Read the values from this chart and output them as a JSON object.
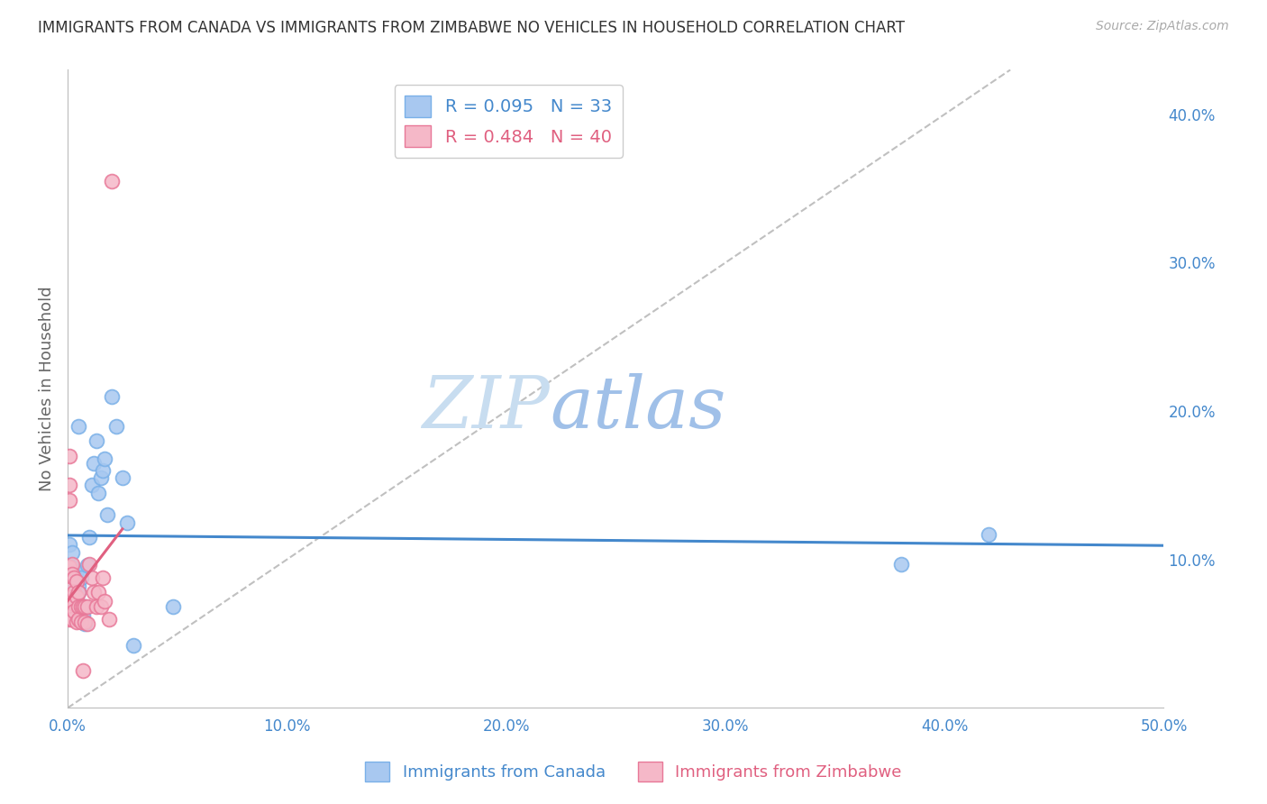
{
  "title": "IMMIGRANTS FROM CANADA VS IMMIGRANTS FROM ZIMBABWE NO VEHICLES IN HOUSEHOLD CORRELATION CHART",
  "source": "Source: ZipAtlas.com",
  "ylabel_left": "No Vehicles in Household",
  "xlim": [
    0.0,
    0.5
  ],
  "ylim": [
    0.0,
    0.43
  ],
  "canada_color": "#a8c8f0",
  "canada_edge": "#7ab0e8",
  "zimbabwe_color": "#f5b8c8",
  "zimbabwe_edge": "#e87898",
  "canada_R": 0.095,
  "canada_N": 33,
  "zimbabwe_R": 0.484,
  "zimbabwe_N": 40,
  "legend_label_canada": "Immigrants from Canada",
  "legend_label_zimbabwe": "Immigrants from Zimbabwe",
  "trendline_canada_color": "#4488cc",
  "trendline_zimbabwe_color": "#e06080",
  "diag_color": "#c0c0c0",
  "watermark_zip": "ZIP",
  "watermark_atlas": "atlas",
  "watermark_color_zip": "#c8ddf0",
  "watermark_color_atlas": "#a0c0e8",
  "canada_x": [
    0.001,
    0.001,
    0.002,
    0.002,
    0.003,
    0.003,
    0.004,
    0.004,
    0.005,
    0.005,
    0.005,
    0.006,
    0.007,
    0.008,
    0.008,
    0.009,
    0.01,
    0.011,
    0.012,
    0.013,
    0.014,
    0.015,
    0.016,
    0.017,
    0.018,
    0.02,
    0.022,
    0.025,
    0.027,
    0.03,
    0.048,
    0.38,
    0.42
  ],
  "canada_y": [
    0.095,
    0.11,
    0.095,
    0.105,
    0.09,
    0.08,
    0.092,
    0.062,
    0.082,
    0.078,
    0.19,
    0.088,
    0.062,
    0.068,
    0.057,
    0.096,
    0.115,
    0.15,
    0.165,
    0.18,
    0.145,
    0.155,
    0.16,
    0.168,
    0.13,
    0.21,
    0.19,
    0.155,
    0.125,
    0.042,
    0.068,
    0.097,
    0.117
  ],
  "zimbabwe_x": [
    0.001,
    0.001,
    0.001,
    0.001,
    0.001,
    0.001,
    0.001,
    0.002,
    0.002,
    0.002,
    0.002,
    0.002,
    0.003,
    0.003,
    0.003,
    0.003,
    0.004,
    0.004,
    0.004,
    0.005,
    0.005,
    0.005,
    0.006,
    0.006,
    0.007,
    0.007,
    0.008,
    0.008,
    0.009,
    0.009,
    0.01,
    0.011,
    0.012,
    0.013,
    0.014,
    0.015,
    0.016,
    0.017,
    0.019,
    0.02
  ],
  "zimbabwe_y": [
    0.17,
    0.15,
    0.14,
    0.095,
    0.08,
    0.068,
    0.06,
    0.097,
    0.09,
    0.075,
    0.068,
    0.06,
    0.088,
    0.078,
    0.07,
    0.065,
    0.085,
    0.075,
    0.058,
    0.078,
    0.068,
    0.06,
    0.068,
    0.058,
    0.068,
    0.025,
    0.068,
    0.058,
    0.068,
    0.057,
    0.097,
    0.088,
    0.078,
    0.068,
    0.078,
    0.068,
    0.088,
    0.072,
    0.06,
    0.355
  ],
  "background_color": "#ffffff",
  "grid_color": "#dddddd",
  "title_color": "#333333",
  "axis_label_color": "#666666",
  "right_tick_color": "#4488cc",
  "bottom_tick_color": "#4488cc",
  "x_ticks": [
    0.0,
    0.1,
    0.2,
    0.3,
    0.4,
    0.5
  ],
  "x_tick_labels": [
    "0.0%",
    "10.0%",
    "20.0%",
    "30.0%",
    "40.0%",
    "50.0%"
  ],
  "y_ticks_right": [
    0.0,
    0.1,
    0.2,
    0.3,
    0.4
  ],
  "y_tick_labels_right": [
    "",
    "10.0%",
    "20.0%",
    "30.0%",
    "40.0%"
  ]
}
